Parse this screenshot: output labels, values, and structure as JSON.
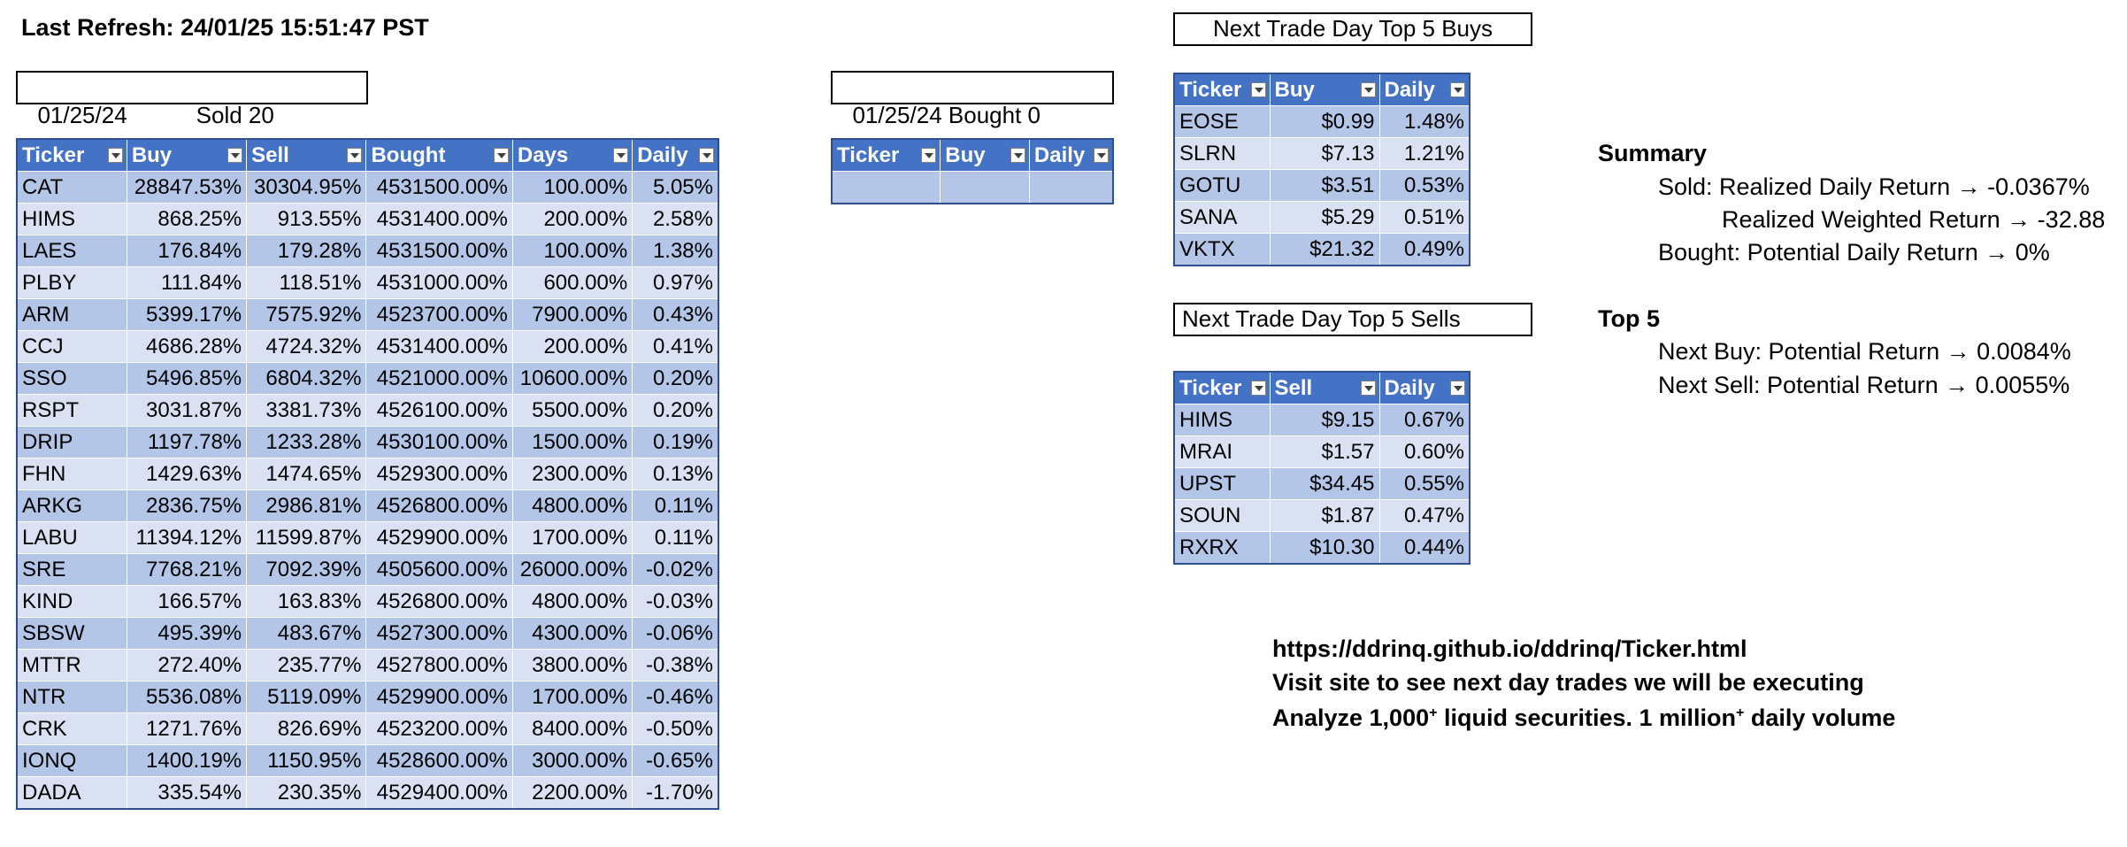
{
  "last_refresh": "Last Refresh: 24/01/25 15:51:47 PST",
  "sold_box": {
    "date": "01/25/24",
    "label": "Sold 20"
  },
  "bought_box": {
    "date": "01/25/24",
    "label": "Bought 0"
  },
  "sold_table": {
    "headers": [
      "Ticker",
      "Buy",
      "Sell",
      "Bought",
      "Days",
      "Daily"
    ],
    "rows": [
      [
        "CAT",
        "28847.53%",
        "30304.95%",
        "4531500.00%",
        "100.00%",
        "5.05%"
      ],
      [
        "HIMS",
        "868.25%",
        "913.55%",
        "4531400.00%",
        "200.00%",
        "2.58%"
      ],
      [
        "LAES",
        "176.84%",
        "179.28%",
        "4531500.00%",
        "100.00%",
        "1.38%"
      ],
      [
        "PLBY",
        "111.84%",
        "118.51%",
        "4531000.00%",
        "600.00%",
        "0.97%"
      ],
      [
        "ARM",
        "5399.17%",
        "7575.92%",
        "4523700.00%",
        "7900.00%",
        "0.43%"
      ],
      [
        "CCJ",
        "4686.28%",
        "4724.32%",
        "4531400.00%",
        "200.00%",
        "0.41%"
      ],
      [
        "SSO",
        "5496.85%",
        "6804.32%",
        "4521000.00%",
        "10600.00%",
        "0.20%"
      ],
      [
        "RSPT",
        "3031.87%",
        "3381.73%",
        "4526100.00%",
        "5500.00%",
        "0.20%"
      ],
      [
        "DRIP",
        "1197.78%",
        "1233.28%",
        "4530100.00%",
        "1500.00%",
        "0.19%"
      ],
      [
        "FHN",
        "1429.63%",
        "1474.65%",
        "4529300.00%",
        "2300.00%",
        "0.13%"
      ],
      [
        "ARKG",
        "2836.75%",
        "2986.81%",
        "4526800.00%",
        "4800.00%",
        "0.11%"
      ],
      [
        "LABU",
        "11394.12%",
        "11599.87%",
        "4529900.00%",
        "1700.00%",
        "0.11%"
      ],
      [
        "SRE",
        "7768.21%",
        "7092.39%",
        "4505600.00%",
        "26000.00%",
        "-0.02%"
      ],
      [
        "KIND",
        "166.57%",
        "163.83%",
        "4526800.00%",
        "4800.00%",
        "-0.03%"
      ],
      [
        "SBSW",
        "495.39%",
        "483.67%",
        "4527300.00%",
        "4300.00%",
        "-0.06%"
      ],
      [
        "MTTR",
        "272.40%",
        "235.77%",
        "4527800.00%",
        "3800.00%",
        "-0.38%"
      ],
      [
        "NTR",
        "5536.08%",
        "5119.09%",
        "4529900.00%",
        "1700.00%",
        "-0.46%"
      ],
      [
        "CRK",
        "1271.76%",
        "826.69%",
        "4523200.00%",
        "8400.00%",
        "-0.50%"
      ],
      [
        "IONQ",
        "1400.19%",
        "1150.95%",
        "4528600.00%",
        "3000.00%",
        "-0.65%"
      ],
      [
        "DADA",
        "335.54%",
        "230.35%",
        "4529400.00%",
        "2200.00%",
        "-1.70%"
      ]
    ]
  },
  "bought_table": {
    "headers": [
      "Ticker",
      "Buy",
      "Daily"
    ],
    "rows": [
      [
        "",
        "",
        ""
      ]
    ]
  },
  "top_buys": {
    "title": "Next Trade Day Top 5 Buys",
    "headers": [
      "Ticker",
      "Buy",
      "Daily"
    ],
    "rows": [
      [
        "EOSE",
        "$0.99",
        "1.48%"
      ],
      [
        "SLRN",
        "$7.13",
        "1.21%"
      ],
      [
        "GOTU",
        "$3.51",
        "0.53%"
      ],
      [
        "SANA",
        "$5.29",
        "0.51%"
      ],
      [
        "VKTX",
        "$21.32",
        "0.49%"
      ]
    ]
  },
  "top_sells": {
    "title": "Next Trade Day Top 5 Sells",
    "headers": [
      "Ticker",
      "Sell",
      "Daily"
    ],
    "rows": [
      [
        "HIMS",
        "$9.15",
        "0.67%"
      ],
      [
        "MRAI",
        "$1.57",
        "0.60%"
      ],
      [
        "UPST",
        "$34.45",
        "0.55%"
      ],
      [
        "SOUN",
        "$1.87",
        "0.47%"
      ],
      [
        "RXRX",
        "$10.30",
        "0.44%"
      ]
    ]
  },
  "summary": {
    "title": "Summary",
    "sold": "Sold: Realized Daily Return → -0.0367%",
    "weighted": "Realized Weighted Return → -32.88",
    "bought": "Bought: Potential Daily Return → 0%"
  },
  "top5": {
    "title": "Top 5",
    "next_buy": "Next Buy: Potential Return → 0.0084%",
    "next_sell": "Next Sell: Potential Return → 0.0055%"
  },
  "site": {
    "url": "https://ddrinq.github.io/ddrinq/Ticker.html",
    "visit": "Visit site to see next day trades we will be executing",
    "analyze_a": "Analyze 1,000",
    "sup_a": "+",
    "analyze_b": " liquid securities.  1 million",
    "sup_b": "+",
    "analyze_c": " daily volume"
  }
}
